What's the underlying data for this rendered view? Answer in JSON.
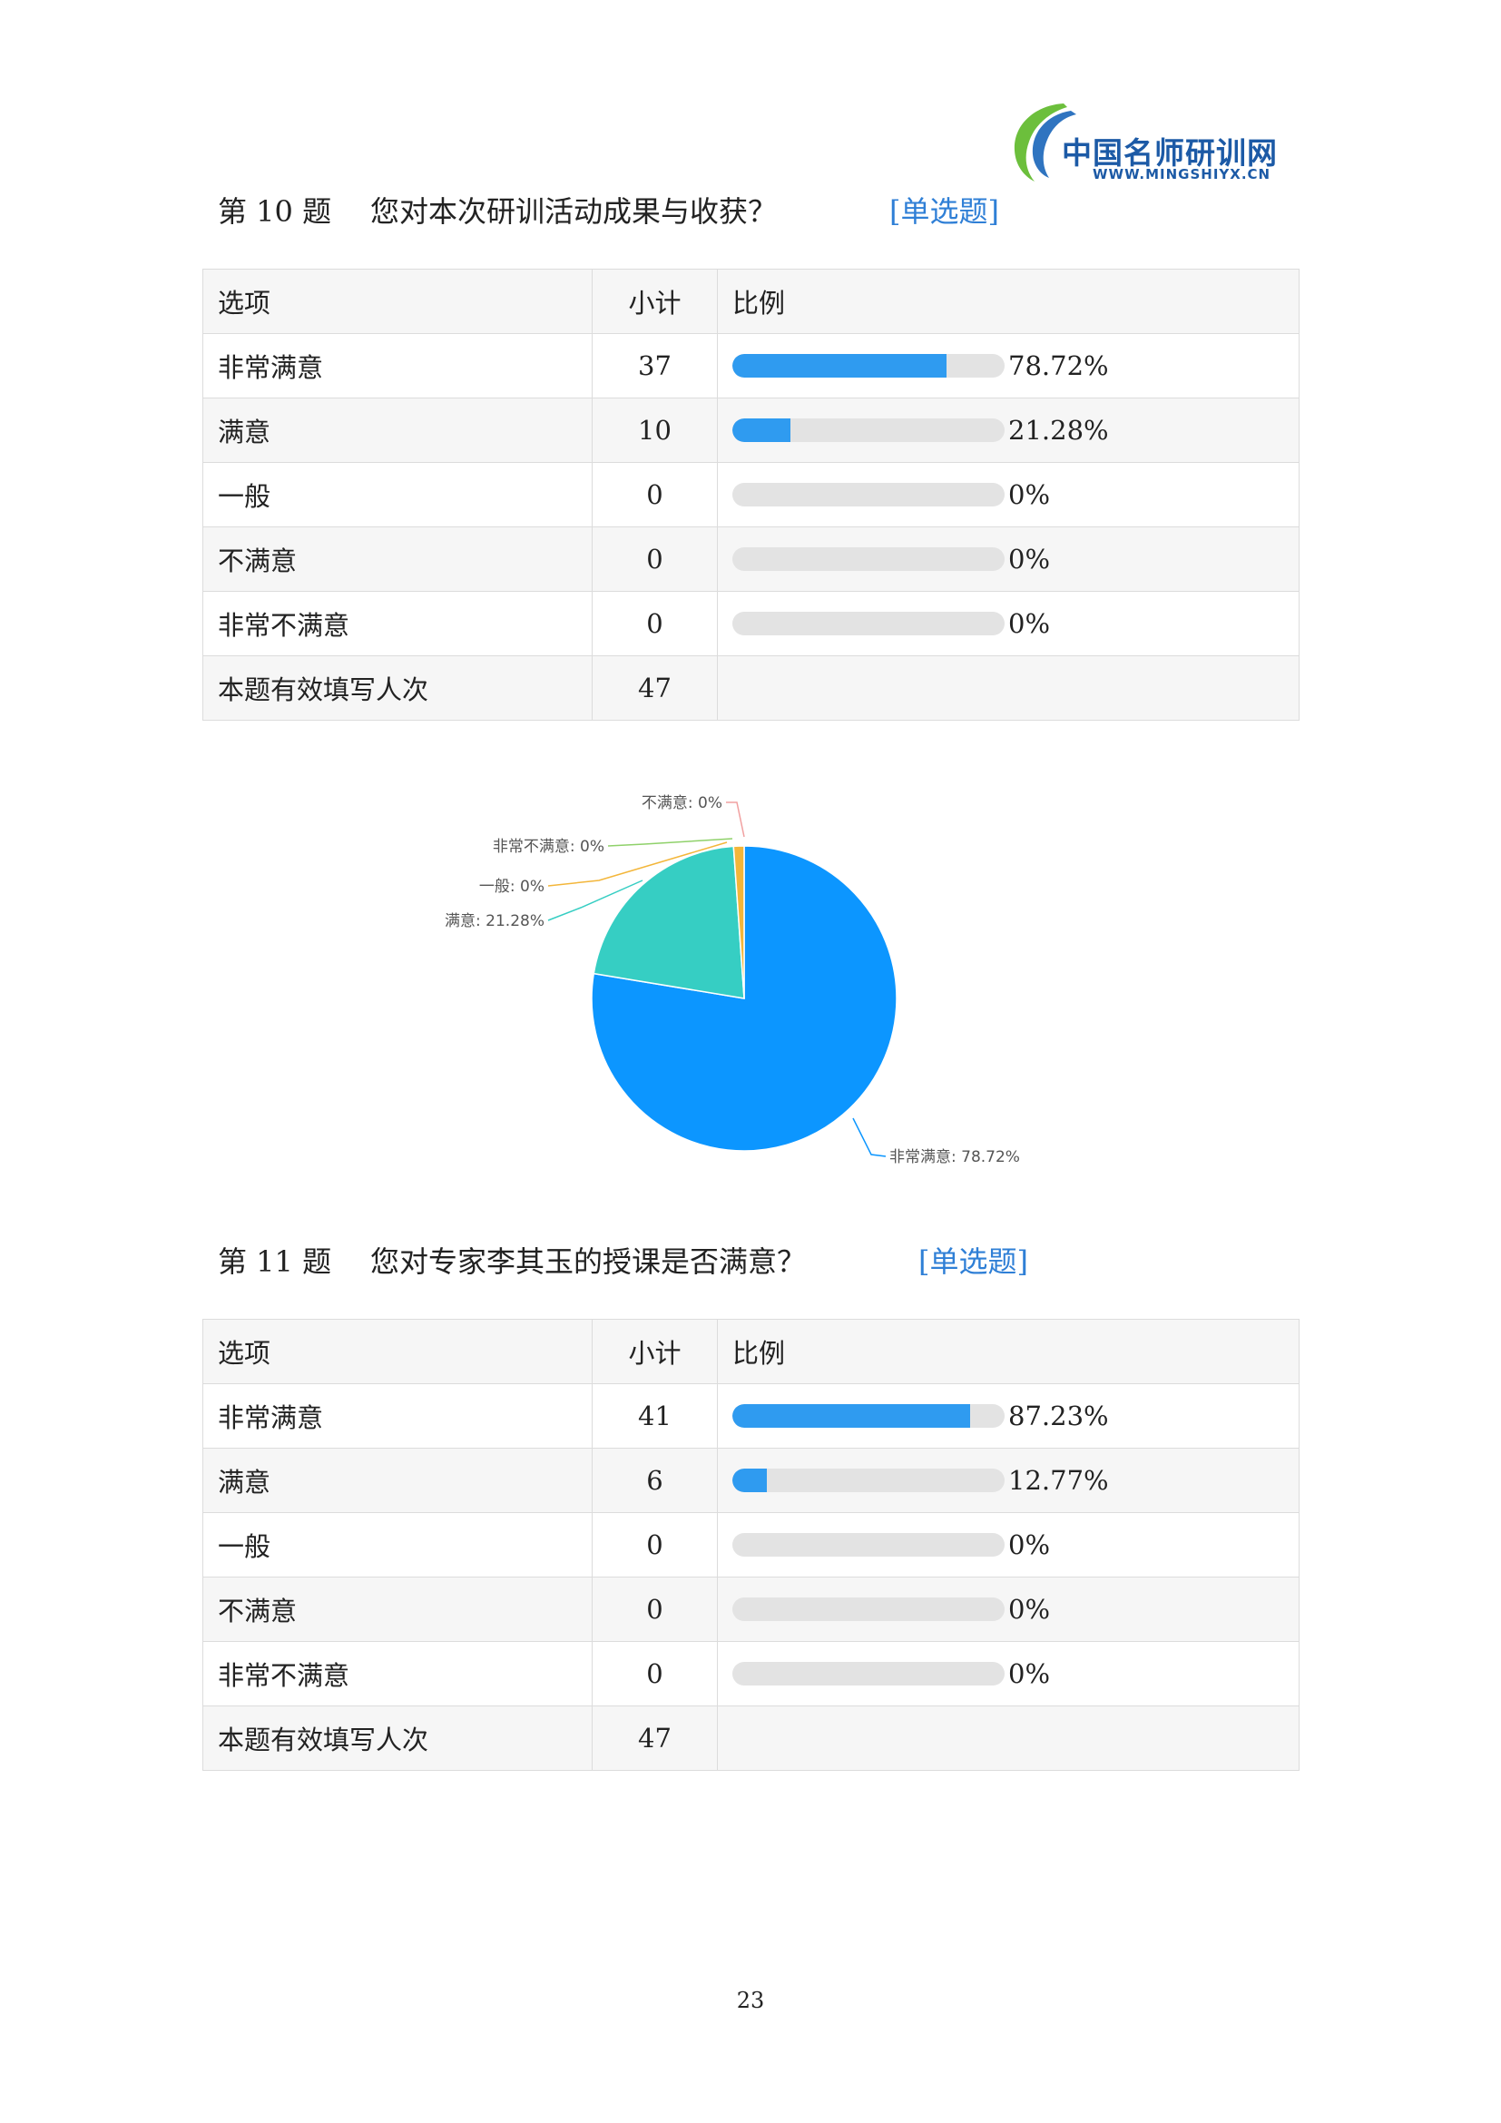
{
  "header": {
    "logo_title": "中国名师研训网",
    "logo_url": "WWW.MINGSHIYX.CN"
  },
  "q10": {
    "number": "第 10 题",
    "title": "您对本次研训活动成果与收获？",
    "type": "[单选题]",
    "col_option": "选项",
    "col_count": "小计",
    "col_ratio": "比例",
    "rows": [
      {
        "option": "非常满意",
        "count": "37",
        "pct": "78.72%",
        "value": 78.72
      },
      {
        "option": "满意",
        "count": "10",
        "pct": "21.28%",
        "value": 21.28
      },
      {
        "option": "一般",
        "count": "0",
        "pct": "0%",
        "value": 0
      },
      {
        "option": "不满意",
        "count": "0",
        "pct": "0%",
        "value": 0
      },
      {
        "option": "非常不满意",
        "count": "0",
        "pct": "0%",
        "value": 0
      }
    ],
    "total_label": "本题有效填写人次",
    "total": "47"
  },
  "chart_data": {
    "type": "pie",
    "categories": [
      "非常满意",
      "满意",
      "一般",
      "不满意",
      "非常不满意"
    ],
    "values": [
      78.72,
      21.28,
      0,
      0,
      0
    ],
    "labels": [
      "非常满意: 78.72%",
      "满意: 21.28%",
      "一般: 0%",
      "不满意: 0%",
      "非常不满意: 0%"
    ],
    "colors": [
      "#0c96ff",
      "#36cec3",
      "#f3b63a",
      "#f1a0a0",
      "#8fd16a"
    ]
  },
  "q11": {
    "number": "第 11 题",
    "title": "您对专家李其玉的授课是否满意？",
    "type": "[单选题]",
    "col_option": "选项",
    "col_count": "小计",
    "col_ratio": "比例",
    "rows": [
      {
        "option": "非常满意",
        "count": "41",
        "pct": "87.23%",
        "value": 87.23
      },
      {
        "option": "满意",
        "count": "6",
        "pct": "12.77%",
        "value": 12.77
      },
      {
        "option": "一般",
        "count": "0",
        "pct": "0%",
        "value": 0
      },
      {
        "option": "不满意",
        "count": "0",
        "pct": "0%",
        "value": 0
      },
      {
        "option": "非常不满意",
        "count": "0",
        "pct": "0%",
        "value": 0
      }
    ],
    "total_label": "本题有效填写人次",
    "total": "47"
  },
  "page_number": "23"
}
